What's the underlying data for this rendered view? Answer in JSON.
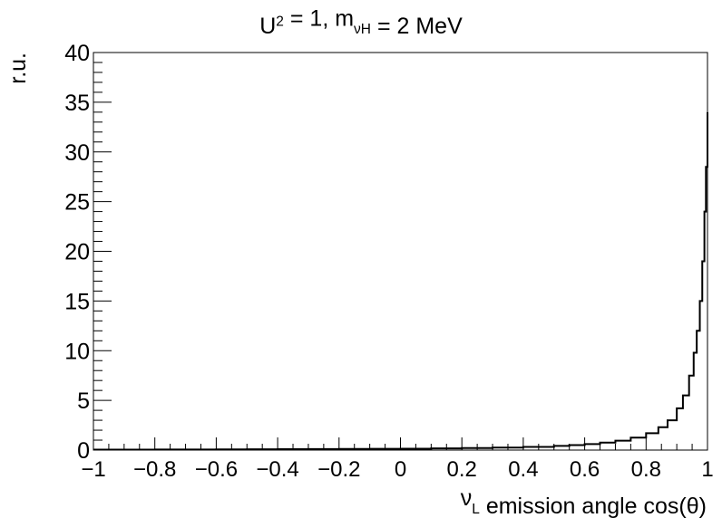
{
  "chart_data": {
    "type": "line",
    "title": {
      "parts": [
        {
          "text": "U"
        },
        {
          "text": "2",
          "shift": "super"
        },
        {
          "text": " = 1, m"
        },
        {
          "text": "νH",
          "shift": "sub"
        },
        {
          "text": " = 2 MeV"
        }
      ]
    },
    "xlabel": {
      "parts": [
        {
          "text": "ν"
        },
        {
          "text": "L",
          "shift": "sub"
        },
        {
          "text": " emission angle cos(θ)"
        }
      ]
    },
    "ylabel": "r.u.",
    "xlim": [
      -1,
      1
    ],
    "ylim": [
      0,
      40
    ],
    "x_ticks": [
      {
        "value": -1,
        "label": "−1"
      },
      {
        "value": -0.8,
        "label": "−0.8"
      },
      {
        "value": -0.6,
        "label": "−0.6"
      },
      {
        "value": -0.4,
        "label": "−0.4"
      },
      {
        "value": -0.2,
        "label": "−0.2"
      },
      {
        "value": 0,
        "label": "0"
      },
      {
        "value": 0.2,
        "label": "0.2"
      },
      {
        "value": 0.4,
        "label": "0.4"
      },
      {
        "value": 0.6,
        "label": "0.6"
      },
      {
        "value": 0.8,
        "label": "0.8"
      },
      {
        "value": 1,
        "label": "1"
      }
    ],
    "y_ticks": [
      {
        "value": 0,
        "label": "0"
      },
      {
        "value": 5,
        "label": "5"
      },
      {
        "value": 10,
        "label": "10"
      },
      {
        "value": 15,
        "label": "15"
      },
      {
        "value": 20,
        "label": "20"
      },
      {
        "value": 25,
        "label": "25"
      },
      {
        "value": 30,
        "label": "30"
      },
      {
        "value": 35,
        "label": "35"
      },
      {
        "value": 40,
        "label": "40"
      }
    ],
    "grid": false,
    "legend": "none",
    "line_color": "#000000",
    "series": [
      {
        "x": [
          -1,
          -0.9,
          -0.8,
          -0.7,
          -0.6,
          -0.5,
          -0.4,
          -0.3,
          -0.2,
          -0.1,
          0,
          0.1,
          0.2,
          0.3,
          0.4,
          0.5,
          0.55,
          0.6,
          0.65,
          0.7,
          0.75,
          0.8,
          0.84,
          0.87,
          0.9,
          0.92,
          0.94,
          0.955,
          0.965,
          0.975,
          0.983,
          0.99,
          0.995,
          1
        ],
        "y": [
          0.05,
          0.05,
          0.06,
          0.06,
          0.07,
          0.08,
          0.09,
          0.1,
          0.11,
          0.12,
          0.14,
          0.17,
          0.2,
          0.25,
          0.32,
          0.42,
          0.5,
          0.6,
          0.75,
          0.95,
          1.25,
          1.7,
          2.3,
          3.0,
          4.2,
          5.5,
          7.5,
          9.8,
          12.0,
          15.0,
          19.0,
          24.0,
          28.5,
          34.0
        ]
      }
    ]
  }
}
